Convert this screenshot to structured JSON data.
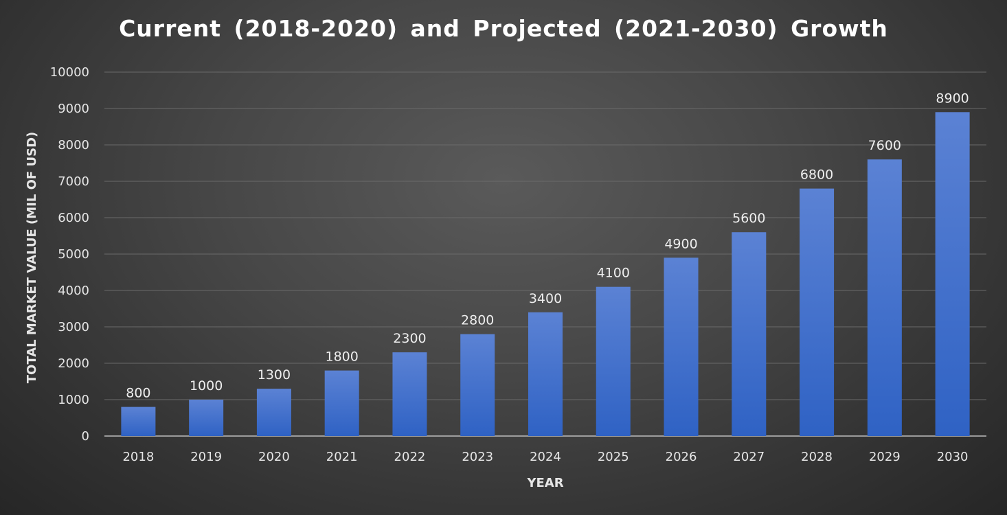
{
  "chart_data": {
    "type": "bar",
    "title": "Current (2018-2020) and Projected (2021-2030) Growth",
    "xlabel": "YEAR",
    "ylabel": "TOTAL MARKET VALUE (MIL OF USD)",
    "categories": [
      "2018",
      "2019",
      "2020",
      "2021",
      "2022",
      "2023",
      "2024",
      "2025",
      "2026",
      "2027",
      "2028",
      "2029",
      "2030"
    ],
    "values": [
      800,
      1000,
      1300,
      1800,
      2300,
      2800,
      3400,
      4100,
      4900,
      5600,
      6800,
      7600,
      8900
    ],
    "ylim": [
      0,
      10000
    ],
    "yticks": [
      0,
      1000,
      2000,
      3000,
      4000,
      5000,
      6000,
      7000,
      8000,
      9000,
      10000
    ],
    "grid": true,
    "data_labels": true,
    "bar_color_top": "#5b82d4",
    "bar_color_bottom": "#2f62c4"
  }
}
